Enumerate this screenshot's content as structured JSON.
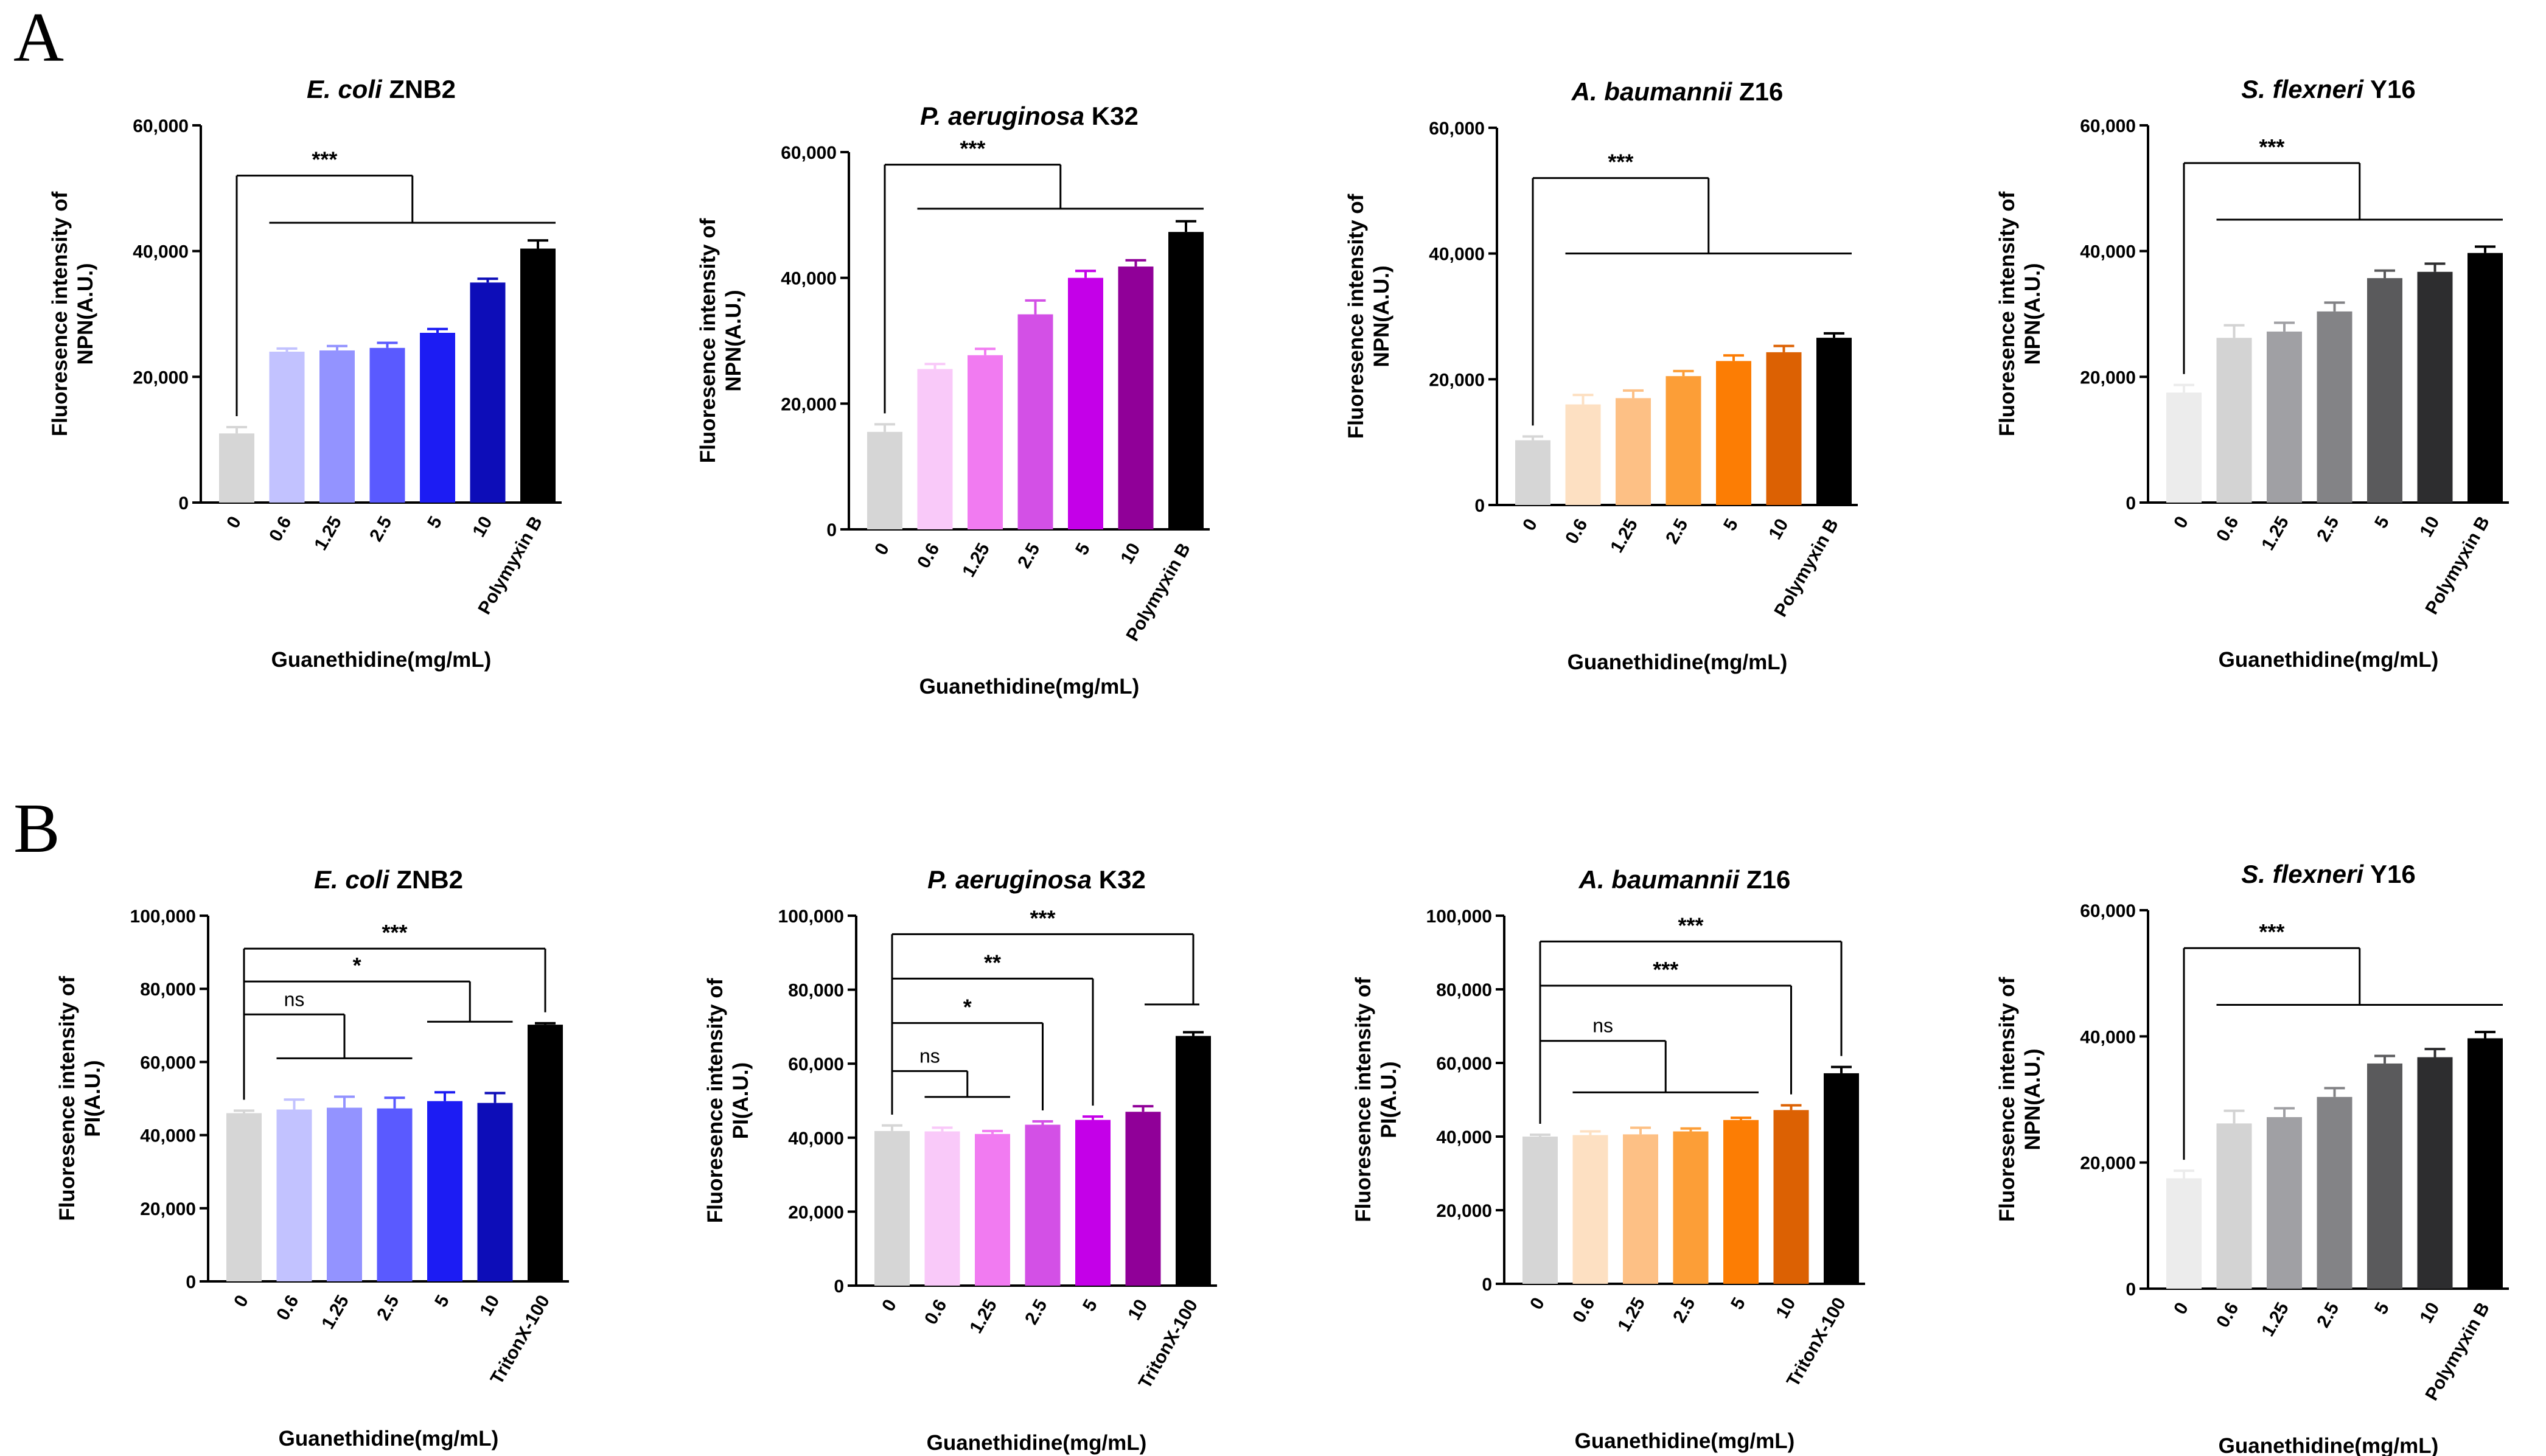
{
  "panel_labels": [
    "A",
    "B"
  ],
  "chart_data": [
    {
      "type": "bar",
      "panel": "A",
      "title_italic": "E. coli",
      "title_rest": " ZNB2",
      "categories": [
        "0",
        "0.6",
        "1.25",
        "2.5",
        "5",
        "10",
        "Polymyxin B"
      ],
      "values": [
        11000,
        24000,
        24200,
        24600,
        27000,
        35000,
        40400
      ],
      "errors": [
        1000,
        500,
        700,
        800,
        600,
        600,
        1300
      ],
      "colors": [
        "#d6d6d6",
        "#c2c2ff",
        "#9393ff",
        "#5a5aff",
        "#1c1cf3",
        "#0d0db8",
        "#000000"
      ],
      "ylim": [
        0,
        60000
      ],
      "yticks": [
        0,
        20000,
        40000,
        60000
      ],
      "ytick_labels": [
        "0",
        "20,000",
        "40,000",
        "60,000"
      ],
      "ylabel_line1": "Fluoresence intensity of",
      "ylabel_line2": "NPN(A.U.)",
      "xlabel": "Guanethidine(mg/mL)",
      "comparisons": [
        {
          "type": "group",
          "from": 0,
          "to_start": 1,
          "to_end": 6,
          "label": "***",
          "y": 52000,
          "line_y": 44500
        }
      ]
    },
    {
      "type": "bar",
      "panel": "A",
      "title_italic": "P. aeruginosa",
      "title_rest": " K32",
      "categories": [
        "0",
        "0.6",
        "1.25",
        "2.5",
        "5",
        "10",
        "Polymyxin B"
      ],
      "values": [
        15500,
        25500,
        27700,
        34200,
        40000,
        41800,
        47300
      ],
      "errors": [
        1200,
        800,
        1000,
        2200,
        1100,
        1000,
        1700
      ],
      "colors": [
        "#d6d6d6",
        "#f9c9f9",
        "#f17bf1",
        "#d350e6",
        "#c400e8",
        "#900098",
        "#000000"
      ],
      "ylim": [
        0,
        60000
      ],
      "yticks": [
        0,
        20000,
        40000,
        60000
      ],
      "ytick_labels": [
        "0",
        "20,000",
        "40,000",
        "60,000"
      ],
      "ylabel_line1": "Fluoresence intensity of",
      "ylabel_line2": "NPN(A.U.)",
      "xlabel": "Guanethidine(mg/mL)",
      "comparisons": [
        {
          "type": "group",
          "from": 0,
          "to_start": 1,
          "to_end": 6,
          "label": "***",
          "y": 58000,
          "line_y": 51000
        }
      ]
    },
    {
      "type": "bar",
      "panel": "A",
      "title_italic": "A. baumannii",
      "title_rest": " Z16",
      "categories": [
        "0",
        "0.6",
        "1.25",
        "2.5",
        "5",
        "10",
        "Polymyxin B"
      ],
      "values": [
        10300,
        16000,
        17000,
        20500,
        22900,
        24300,
        26600
      ],
      "errors": [
        600,
        1500,
        1200,
        800,
        900,
        1000,
        700
      ],
      "colors": [
        "#d6d6d6",
        "#fde0c2",
        "#fdc085",
        "#fc9e37",
        "#fc7d04",
        "#dc6103",
        "#000000"
      ],
      "ylim": [
        0,
        60000
      ],
      "yticks": [
        0,
        20000,
        40000,
        60000
      ],
      "ytick_labels": [
        "0",
        "20,000",
        "40,000",
        "60,000"
      ],
      "ylabel_line1": "Fluoresence intensity of",
      "ylabel_line2": "NPN(A.U.)",
      "xlabel": "Guanethidine(mg/mL)",
      "comparisons": [
        {
          "type": "group",
          "from": 0,
          "to_start": 1,
          "to_end": 6,
          "label": "***",
          "y": 52000,
          "line_y": 40000
        }
      ]
    },
    {
      "type": "bar",
      "panel": "A",
      "title_italic": "S. flexneri",
      "title_rest": " Y16",
      "categories": [
        "0",
        "0.6",
        "1.25",
        "2.5",
        "5",
        "10",
        "Polymyxin B"
      ],
      "values": [
        17500,
        26200,
        27200,
        30400,
        35700,
        36700,
        39700
      ],
      "errors": [
        1200,
        2000,
        1400,
        1400,
        1200,
        1300,
        1000
      ],
      "colors": [
        "#ececec",
        "#d3d3d3",
        "#a0a0a4",
        "#838386",
        "#5a5a5c",
        "#2d2d2f",
        "#000000"
      ],
      "ylim": [
        0,
        60000
      ],
      "yticks": [
        0,
        20000,
        40000,
        60000
      ],
      "ytick_labels": [
        "0",
        "20,000",
        "40,000",
        "60,000"
      ],
      "ylabel_line1": "Fluoresence intensity of",
      "ylabel_line2": "NPN(A.U.)",
      "xlabel": "Guanethidine(mg/mL)",
      "comparisons": [
        {
          "type": "group",
          "from": 0,
          "to_start": 1,
          "to_end": 6,
          "label": "***",
          "y": 54000,
          "line_y": 45000
        }
      ]
    },
    {
      "type": "bar",
      "panel": "B",
      "title_italic": "E. coli",
      "title_rest": " ZNB2",
      "categories": [
        "0",
        "0.6",
        "1.25",
        "2.5",
        "5",
        "10",
        "TritonX-100"
      ],
      "values": [
        46000,
        47000,
        47500,
        47300,
        49300,
        48800,
        70200
      ],
      "errors": [
        700,
        2700,
        3000,
        2900,
        2400,
        2700,
        400
      ],
      "colors": [
        "#d6d6d6",
        "#c2c2ff",
        "#9393ff",
        "#5a5aff",
        "#1c1cf3",
        "#0d0db8",
        "#000000"
      ],
      "ylim": [
        0,
        100000
      ],
      "yticks": [
        0,
        20000,
        40000,
        60000,
        80000,
        100000
      ],
      "ytick_labels": [
        "0",
        "20,000",
        "40,000",
        "60,000",
        "80,000",
        "100,000"
      ],
      "ylabel_line1": "Fluoresence intensity of",
      "ylabel_line2": "PI(A.U.)",
      "xlabel": "Guanethidine(mg/mL)",
      "comparisons": [
        {
          "type": "group",
          "from": 0,
          "to_start": 1,
          "to_end": 3,
          "label": "ns",
          "y": 73000,
          "line_y": 61000
        },
        {
          "type": "group",
          "from": 0,
          "to_start": 4,
          "to_end": 5,
          "label": "*",
          "y": 82000,
          "line_y": 71000
        },
        {
          "type": "bracket",
          "from": 0,
          "to": 6,
          "label": "***",
          "y": 91000
        }
      ]
    },
    {
      "type": "bar",
      "panel": "B",
      "title_italic": "P. aeruginosa",
      "title_rest": " K32",
      "categories": [
        "0",
        "0.6",
        "1.25",
        "2.5",
        "5",
        "10",
        "TritonX-100"
      ],
      "values": [
        41800,
        41700,
        41000,
        43500,
        44800,
        47000,
        67500
      ],
      "errors": [
        1500,
        1000,
        800,
        900,
        900,
        1500,
        1000
      ],
      "colors": [
        "#d6d6d6",
        "#f9c9f9",
        "#f17bf1",
        "#d350e6",
        "#c400e8",
        "#900098",
        "#000000"
      ],
      "ylim": [
        0,
        100000
      ],
      "yticks": [
        0,
        20000,
        40000,
        60000,
        80000,
        100000
      ],
      "ytick_labels": [
        "0",
        "20,000",
        "40,000",
        "60,000",
        "80,000",
        "100,000"
      ],
      "ylabel_line1": "Fluoresence intensity of",
      "ylabel_line2": "PI(A.U.)",
      "xlabel": "Guanethidine(mg/mL)",
      "comparisons": [
        {
          "type": "group",
          "from": 0,
          "to_start": 1,
          "to_end": 2,
          "label": "ns",
          "y": 58000,
          "line_y": 51000
        },
        {
          "type": "bracket",
          "from": 0,
          "to": 3,
          "label": "*",
          "y": 71000
        },
        {
          "type": "bracket",
          "from": 0,
          "to": 4,
          "label": "**",
          "y": 83000
        },
        {
          "type": "bracket_tie",
          "from": 0,
          "to": 6,
          "label": "***",
          "y": 95000,
          "line_y": 76000
        }
      ]
    },
    {
      "type": "bar",
      "panel": "B",
      "title_italic": "A. baumannii",
      "title_rest": " Z16",
      "categories": [
        "0",
        "0.6",
        "1.25",
        "2.5",
        "5",
        "10",
        "TritonX-100"
      ],
      "values": [
        40000,
        40400,
        40600,
        41400,
        44500,
        47200,
        57200
      ],
      "errors": [
        500,
        1000,
        1800,
        800,
        600,
        1300,
        1700
      ],
      "colors": [
        "#d6d6d6",
        "#fde0c2",
        "#fdc085",
        "#fc9e37",
        "#fc7d04",
        "#dc6103",
        "#000000"
      ],
      "ylim": [
        0,
        100000
      ],
      "yticks": [
        0,
        20000,
        40000,
        60000,
        80000,
        100000
      ],
      "ytick_labels": [
        "0",
        "20,000",
        "40,000",
        "60,000",
        "80,000",
        "100,000"
      ],
      "ylabel_line1": "Fluoresence intensity of",
      "ylabel_line2": "PI(A.U.)",
      "xlabel": "Guanethidine(mg/mL)",
      "comparisons": [
        {
          "type": "group",
          "from": 0,
          "to_start": 1,
          "to_end": 4,
          "label": "ns",
          "y": 66000,
          "line_y": 52000
        },
        {
          "type": "bracket",
          "from": 0,
          "to": 5,
          "label": "***",
          "y": 81000
        },
        {
          "type": "bracket",
          "from": 0,
          "to": 6,
          "label": "***",
          "y": 93000
        }
      ]
    },
    {
      "type": "bar",
      "panel": "B",
      "title_italic": "S. flexneri",
      "title_rest": " Y16",
      "categories": [
        "0",
        "0.6",
        "1.25",
        "2.5",
        "5",
        "10",
        "Polymyxin B"
      ],
      "values": [
        17500,
        26200,
        27200,
        30400,
        35700,
        36700,
        39700
      ],
      "errors": [
        1200,
        2000,
        1400,
        1400,
        1200,
        1300,
        1000
      ],
      "colors": [
        "#ececec",
        "#d3d3d3",
        "#a0a0a4",
        "#838386",
        "#5a5a5c",
        "#2d2d2f",
        "#000000"
      ],
      "ylim": [
        0,
        60000
      ],
      "yticks": [
        0,
        20000,
        40000,
        60000
      ],
      "ytick_labels": [
        "0",
        "20,000",
        "40,000",
        "60,000"
      ],
      "ylabel_line1": "Fluoresence intensity of",
      "ylabel_line2": "NPN(A.U.)",
      "xlabel": "Guanethidine(mg/mL)",
      "comparisons": [
        {
          "type": "group",
          "from": 0,
          "to_start": 1,
          "to_end": 6,
          "label": "***",
          "y": 54000,
          "line_y": 45000
        }
      ]
    }
  ]
}
